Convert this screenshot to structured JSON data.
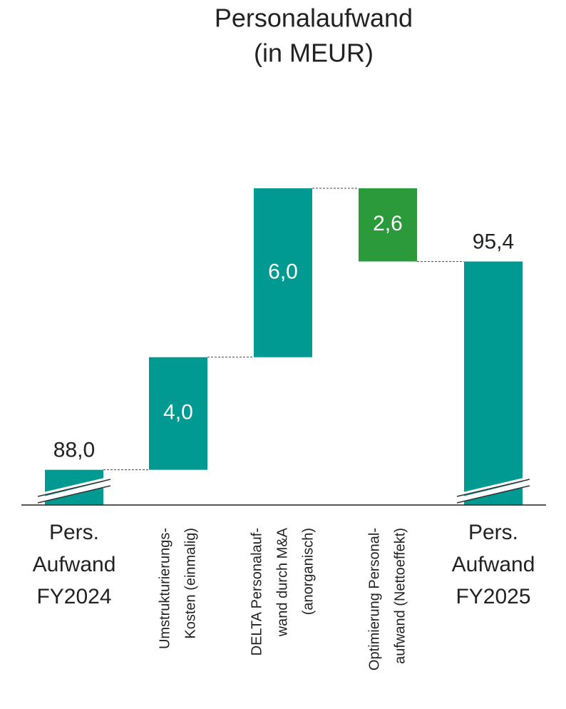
{
  "chart_data": {
    "type": "waterfall",
    "title": [
      "Personalaufwand",
      "(in MEUR)"
    ],
    "categories": [
      [
        "Pers.",
        "Aufwand",
        "FY2024"
      ],
      [
        "Umstrukturierungs-",
        "Kosten (einmalig)"
      ],
      [
        "DELTA Personalauf-",
        "wand durch M&A",
        "(anorganisch)"
      ],
      [
        "Optimierung Personal-",
        "aufwand (Nettoeffekt)"
      ],
      [
        "Pers.",
        "Aufwand",
        "FY2025"
      ]
    ],
    "measures": [
      "absolute",
      "relative",
      "relative",
      "relative",
      "absolute"
    ],
    "values": [
      88.0,
      4.0,
      6.0,
      -2.6,
      95.4
    ],
    "value_labels": [
      "88,0",
      "4,0",
      "6,0",
      "2,6",
      "95,4"
    ],
    "colors": [
      "#009a93",
      "#009a93",
      "#009a93",
      "#2a9a3a",
      "#009a93"
    ],
    "ylim": [
      86.75,
      100
    ],
    "axis_break": true,
    "connectors": true
  }
}
